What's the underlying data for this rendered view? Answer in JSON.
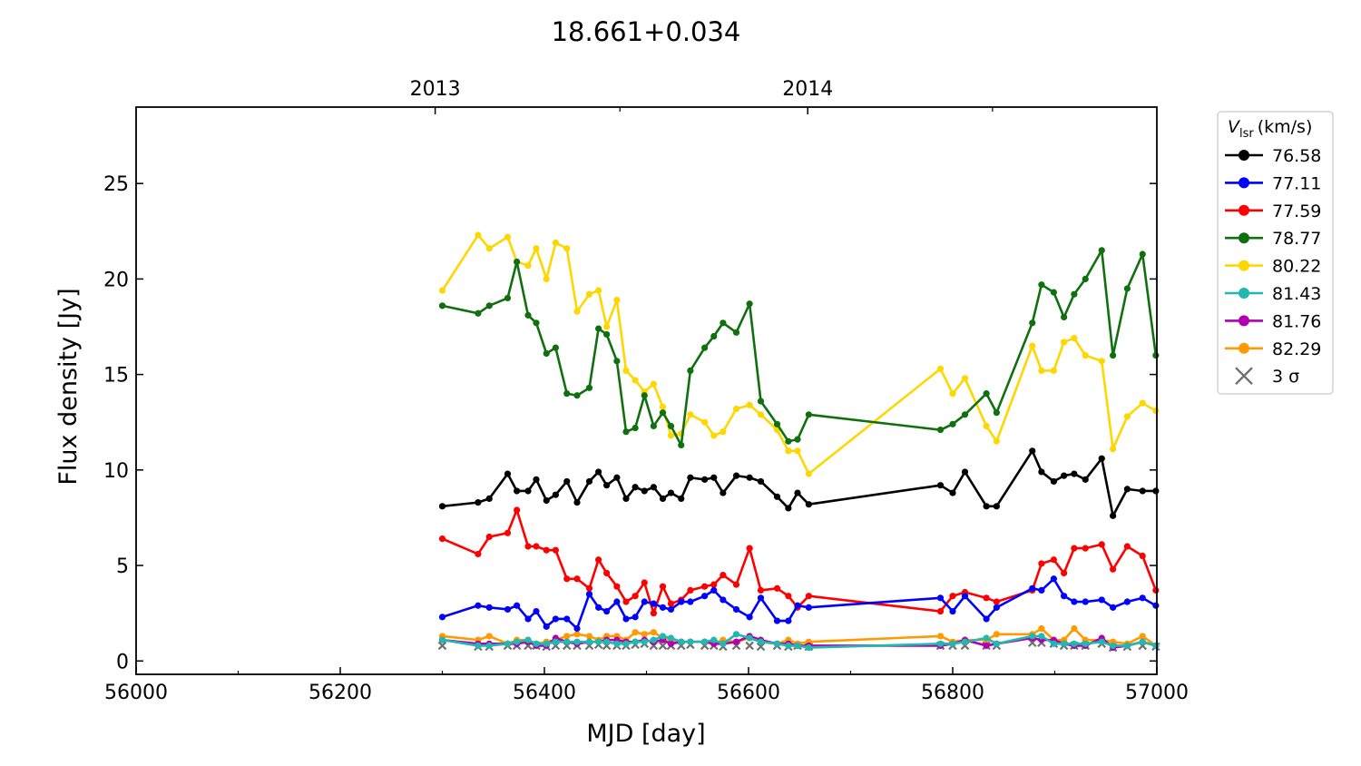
{
  "chart_data": {
    "type": "line",
    "title": "18.661+0.034",
    "xlabel": "MJD [day]",
    "ylabel": "Flux density [Jy]",
    "xlim": [
      56000,
      57000
    ],
    "ylim": [
      -0.7,
      29
    ],
    "xticks": [
      56000,
      56200,
      56400,
      56600,
      56800,
      57000
    ],
    "xtick_labels": [
      "56000",
      "56200",
      "56400",
      "56600",
      "56800",
      "57000"
    ],
    "yticks": [
      0,
      5,
      10,
      15,
      20,
      25
    ],
    "ytick_labels": [
      "0",
      "5",
      "10",
      "15",
      "20",
      "25"
    ],
    "top_axis": {
      "ticks": [
        56293,
        56658
      ],
      "labels": [
        "2013",
        "2014"
      ],
      "minor_ticks": [
        56474,
        56839
      ]
    },
    "grid": false,
    "legend": {
      "placement": "outside-right",
      "title_main": "V",
      "title_sub": "lsr",
      "title_unit": "(km/s)"
    },
    "x": [
      56300,
      56335,
      56346,
      56364,
      56373,
      56384,
      56392,
      56402,
      56411,
      56422,
      56432,
      56444,
      56453,
      56461,
      56471,
      56480,
      56489,
      56498,
      56507,
      56516,
      56524,
      56534,
      56543,
      56557,
      56566,
      56575,
      56588,
      56601,
      56612,
      56628,
      56639,
      56648,
      56659,
      56788,
      56800,
      56812,
      56833,
      56843,
      56878,
      56887,
      56899,
      56909,
      56919,
      56930,
      56946,
      56957,
      56971,
      56986,
      56999
    ],
    "series": [
      {
        "name": "76.58",
        "color": "#000000",
        "values": [
          8.1,
          8.3,
          8.5,
          9.8,
          8.9,
          8.9,
          9.5,
          8.4,
          8.7,
          9.4,
          8.3,
          9.4,
          9.9,
          9.2,
          9.6,
          8.5,
          9.1,
          8.9,
          9.1,
          8.5,
          8.8,
          8.5,
          9.6,
          9.5,
          9.6,
          8.8,
          9.7,
          9.6,
          9.4,
          8.6,
          8.0,
          8.8,
          8.2,
          9.2,
          8.8,
          9.9,
          8.1,
          8.1,
          11.0,
          9.9,
          9.4,
          9.7,
          9.8,
          9.5,
          10.6,
          7.6,
          9.0,
          8.9,
          8.9
        ]
      },
      {
        "name": "77.11",
        "color": "#0000ff",
        "values": [
          2.3,
          2.9,
          2.8,
          2.7,
          2.9,
          2.2,
          2.6,
          1.8,
          2.2,
          2.2,
          1.7,
          3.5,
          2.8,
          2.6,
          3.1,
          2.2,
          2.3,
          3.1,
          3.0,
          2.8,
          2.7,
          3.1,
          3.1,
          3.4,
          3.7,
          3.2,
          2.7,
          2.3,
          3.3,
          2.1,
          2.1,
          2.9,
          2.8,
          3.3,
          2.6,
          3.4,
          2.2,
          2.8,
          3.8,
          3.7,
          4.3,
          3.4,
          3.1,
          3.1,
          3.2,
          2.8,
          3.1,
          3.3,
          2.9
        ]
      },
      {
        "name": "77.59",
        "color": "#ff0000",
        "values": [
          6.4,
          5.6,
          6.5,
          6.7,
          7.9,
          6.0,
          6.0,
          5.8,
          5.8,
          4.3,
          4.3,
          3.8,
          5.3,
          4.6,
          3.9,
          3.1,
          3.4,
          4.1,
          2.5,
          3.9,
          3.0,
          3.2,
          3.7,
          3.9,
          4.0,
          4.5,
          4.0,
          5.9,
          3.7,
          3.8,
          3.4,
          2.8,
          3.4,
          2.6,
          3.4,
          3.6,
          3.3,
          3.1,
          3.7,
          5.1,
          5.3,
          4.6,
          5.9,
          5.9,
          6.1,
          4.8,
          6.0,
          5.5,
          3.7
        ]
      },
      {
        "name": "78.77",
        "color": "#107010",
        "values": [
          18.6,
          18.2,
          18.6,
          19.0,
          20.9,
          18.1,
          17.7,
          16.1,
          16.4,
          14.0,
          13.9,
          14.3,
          17.4,
          17.1,
          15.7,
          12.0,
          12.2,
          13.9,
          12.3,
          13.0,
          12.3,
          11.3,
          15.2,
          16.4,
          17.0,
          17.7,
          17.2,
          18.7,
          13.6,
          12.4,
          11.5,
          11.6,
          12.9,
          12.1,
          12.4,
          12.9,
          14.0,
          13.0,
          17.7,
          19.7,
          19.3,
          18.0,
          19.2,
          20.0,
          21.5,
          16.0,
          19.5,
          21.3,
          16.0
        ]
      },
      {
        "name": "80.22",
        "color": "#ffd700",
        "values": [
          19.4,
          22.3,
          21.6,
          22.2,
          20.9,
          20.7,
          21.6,
          20.0,
          21.9,
          21.6,
          18.3,
          19.2,
          19.4,
          17.5,
          18.9,
          15.2,
          14.7,
          14.1,
          14.5,
          13.3,
          11.8,
          11.9,
          12.9,
          12.5,
          11.8,
          12.0,
          13.2,
          13.4,
          12.9,
          12.1,
          11.0,
          11.0,
          9.8,
          15.3,
          14.0,
          14.8,
          12.3,
          11.5,
          16.5,
          15.2,
          15.2,
          16.7,
          16.9,
          16.0,
          15.7,
          11.1,
          12.8,
          13.5,
          13.1
        ]
      },
      {
        "name": "81.43",
        "color": "#20b8b0",
        "values": [
          1.1,
          0.8,
          0.8,
          0.9,
          1.0,
          1.1,
          0.9,
          0.9,
          1.0,
          1.0,
          1.0,
          1.0,
          1.0,
          1.0,
          0.9,
          0.9,
          1.0,
          1.0,
          1.1,
          1.3,
          1.2,
          1.0,
          1.0,
          1.0,
          1.1,
          0.9,
          1.4,
          1.2,
          1.0,
          0.9,
          0.8,
          0.8,
          0.7,
          0.9,
          0.9,
          1.0,
          1.2,
          0.9,
          1.3,
          1.3,
          0.9,
          0.9,
          0.9,
          0.9,
          1.0,
          0.8,
          0.8,
          1.0,
          0.8
        ]
      },
      {
        "name": "81.76",
        "color": "#b000b0",
        "values": [
          1.1,
          0.9,
          0.9,
          0.9,
          0.9,
          1.0,
          0.8,
          0.8,
          1.2,
          1.0,
          0.9,
          1.0,
          1.0,
          1.1,
          1.1,
          1.0,
          1.0,
          1.1,
          1.0,
          1.1,
          0.9,
          1.0,
          1.0,
          1.0,
          0.9,
          0.9,
          1.0,
          1.3,
          1.1,
          0.9,
          0.9,
          0.8,
          0.8,
          0.8,
          0.9,
          1.1,
          0.8,
          0.9,
          1.2,
          1.1,
          1.1,
          0.9,
          0.8,
          0.8,
          1.2,
          0.7,
          0.8,
          1.0,
          0.8
        ]
      },
      {
        "name": "82.29",
        "color": "#ff9a00",
        "values": [
          1.3,
          1.1,
          1.3,
          0.9,
          1.1,
          1.1,
          0.9,
          1.0,
          1.1,
          1.3,
          1.4,
          1.3,
          1.1,
          1.3,
          1.3,
          1.1,
          1.5,
          1.4,
          1.5,
          1.2,
          1.1,
          1.0,
          1.0,
          1.0,
          0.9,
          1.1,
          1.0,
          1.2,
          1.0,
          0.9,
          1.1,
          0.9,
          1.0,
          1.3,
          1.0,
          1.1,
          1.1,
          1.4,
          1.4,
          1.7,
          1.1,
          1.1,
          1.7,
          1.1,
          1.1,
          1.0,
          0.9,
          1.3,
          0.8
        ]
      }
    ],
    "sigma": {
      "name": "3 σ",
      "color": "#707070",
      "values": [
        0.8,
        0.75,
        0.75,
        0.8,
        0.8,
        0.8,
        0.8,
        0.75,
        0.8,
        0.8,
        0.8,
        0.8,
        0.85,
        0.8,
        0.8,
        0.8,
        0.85,
        0.9,
        0.8,
        0.8,
        0.8,
        0.8,
        0.85,
        0.8,
        0.8,
        0.75,
        0.8,
        0.8,
        0.75,
        0.8,
        0.75,
        0.8,
        0.75,
        0.8,
        0.8,
        0.8,
        0.8,
        0.8,
        0.95,
        0.95,
        0.9,
        0.8,
        0.8,
        0.8,
        0.9,
        0.7,
        0.75,
        0.8,
        0.75
      ]
    }
  }
}
